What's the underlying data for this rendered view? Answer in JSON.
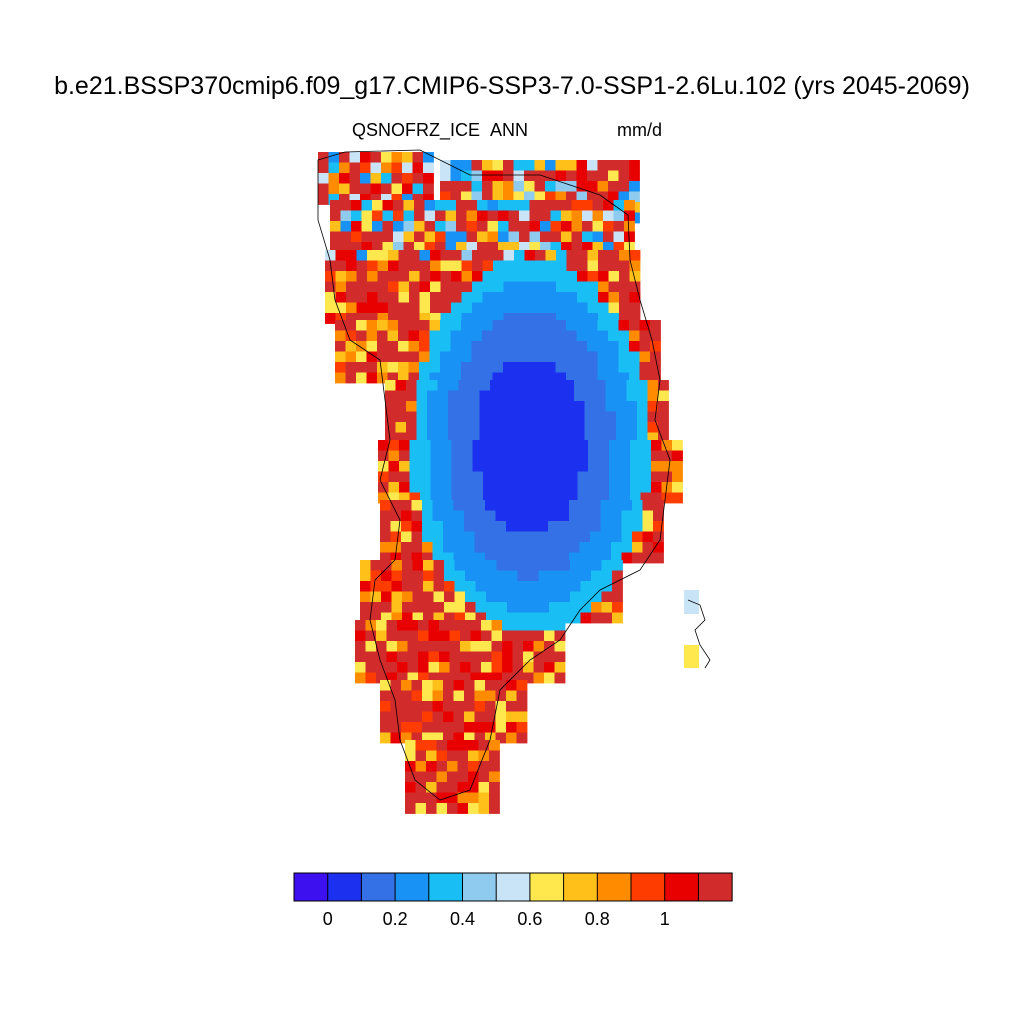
{
  "title": "b.e21.BSSP370cmip6.f09_g17.CMIP6-SSP3-7.0-SSP1-2.6Lu.102 (yrs 2045-2069)",
  "variable": "QSNOFRZ_ICE",
  "season": "ANN",
  "units": "mm/d",
  "colorbar": {
    "colors": [
      "#3d10f0",
      "#1c30f0",
      "#3470e6",
      "#1892f4",
      "#18bef4",
      "#8ecbef",
      "#c8e4f6",
      "#ffe84e",
      "#ffc01a",
      "#ff8c00",
      "#ff3c00",
      "#e80000",
      "#d22b2b"
    ],
    "tick_labels": [
      "0",
      "0.2",
      "0.4",
      "0.6",
      "0.8",
      "1"
    ]
  }
}
